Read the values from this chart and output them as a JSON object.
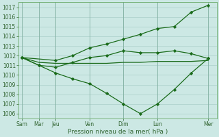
{
  "background_color": "#cce8e4",
  "grid_color": "#aacfca",
  "line_color": "#1a6b1a",
  "spine_color": "#6aaa6a",
  "xtick_display": [
    "Sam",
    "Mar",
    "Jeu",
    "Ven",
    "Dim",
    "Lun",
    "Mer"
  ],
  "xtick_display_pos": [
    0,
    1,
    2,
    4,
    6,
    8,
    11
  ],
  "ylim": [
    1005.5,
    1017.5
  ],
  "xlim": [
    -0.2,
    11.5
  ],
  "yticks": [
    1006,
    1007,
    1008,
    1009,
    1010,
    1011,
    1012,
    1013,
    1014,
    1015,
    1016,
    1017
  ],
  "xlabel": "Pression niveau de la mer( hPa )",
  "series": [
    {
      "x": [
        0,
        1,
        2,
        3,
        4,
        5,
        6,
        7,
        8,
        9,
        10,
        11
      ],
      "y": [
        1011.8,
        1011.3,
        1011.2,
        1011.2,
        1011.2,
        1011.2,
        1011.3,
        1011.3,
        1011.4,
        1011.4,
        1011.4,
        1011.5
      ],
      "marker": null,
      "linestyle": "-",
      "linewidth": 0.9
    },
    {
      "x": [
        0,
        1,
        2,
        3,
        4,
        5,
        6,
        7,
        8,
        9,
        10,
        11
      ],
      "y": [
        1011.8,
        1011.0,
        1010.2,
        1009.6,
        1009.1,
        1008.1,
        1007.0,
        1006.0,
        1007.0,
        1008.5,
        1010.2,
        1011.7
      ],
      "marker": "D",
      "linestyle": "-",
      "linewidth": 0.9,
      "markersize": 2.2
    },
    {
      "x": [
        0,
        1,
        2,
        3,
        4,
        5,
        6,
        7,
        8,
        9,
        10,
        11
      ],
      "y": [
        1011.8,
        1011.0,
        1010.8,
        1011.3,
        1011.8,
        1012.0,
        1012.5,
        1012.3,
        1012.3,
        1012.5,
        1012.2,
        1011.7
      ],
      "marker": "D",
      "linestyle": "-",
      "linewidth": 0.9,
      "markersize": 2.2
    },
    {
      "x": [
        0,
        2,
        3,
        4,
        5,
        6,
        7,
        8,
        9,
        10,
        11
      ],
      "y": [
        1011.8,
        1011.5,
        1012.0,
        1012.8,
        1013.2,
        1013.7,
        1014.2,
        1014.8,
        1015.0,
        1016.5,
        1017.2
      ],
      "marker": "D",
      "linestyle": "-",
      "linewidth": 0.9,
      "markersize": 2.2
    }
  ],
  "figsize": [
    3.2,
    2.0
  ],
  "dpi": 100,
  "tick_fontsize": 5.5,
  "xlabel_fontsize": 6.5
}
